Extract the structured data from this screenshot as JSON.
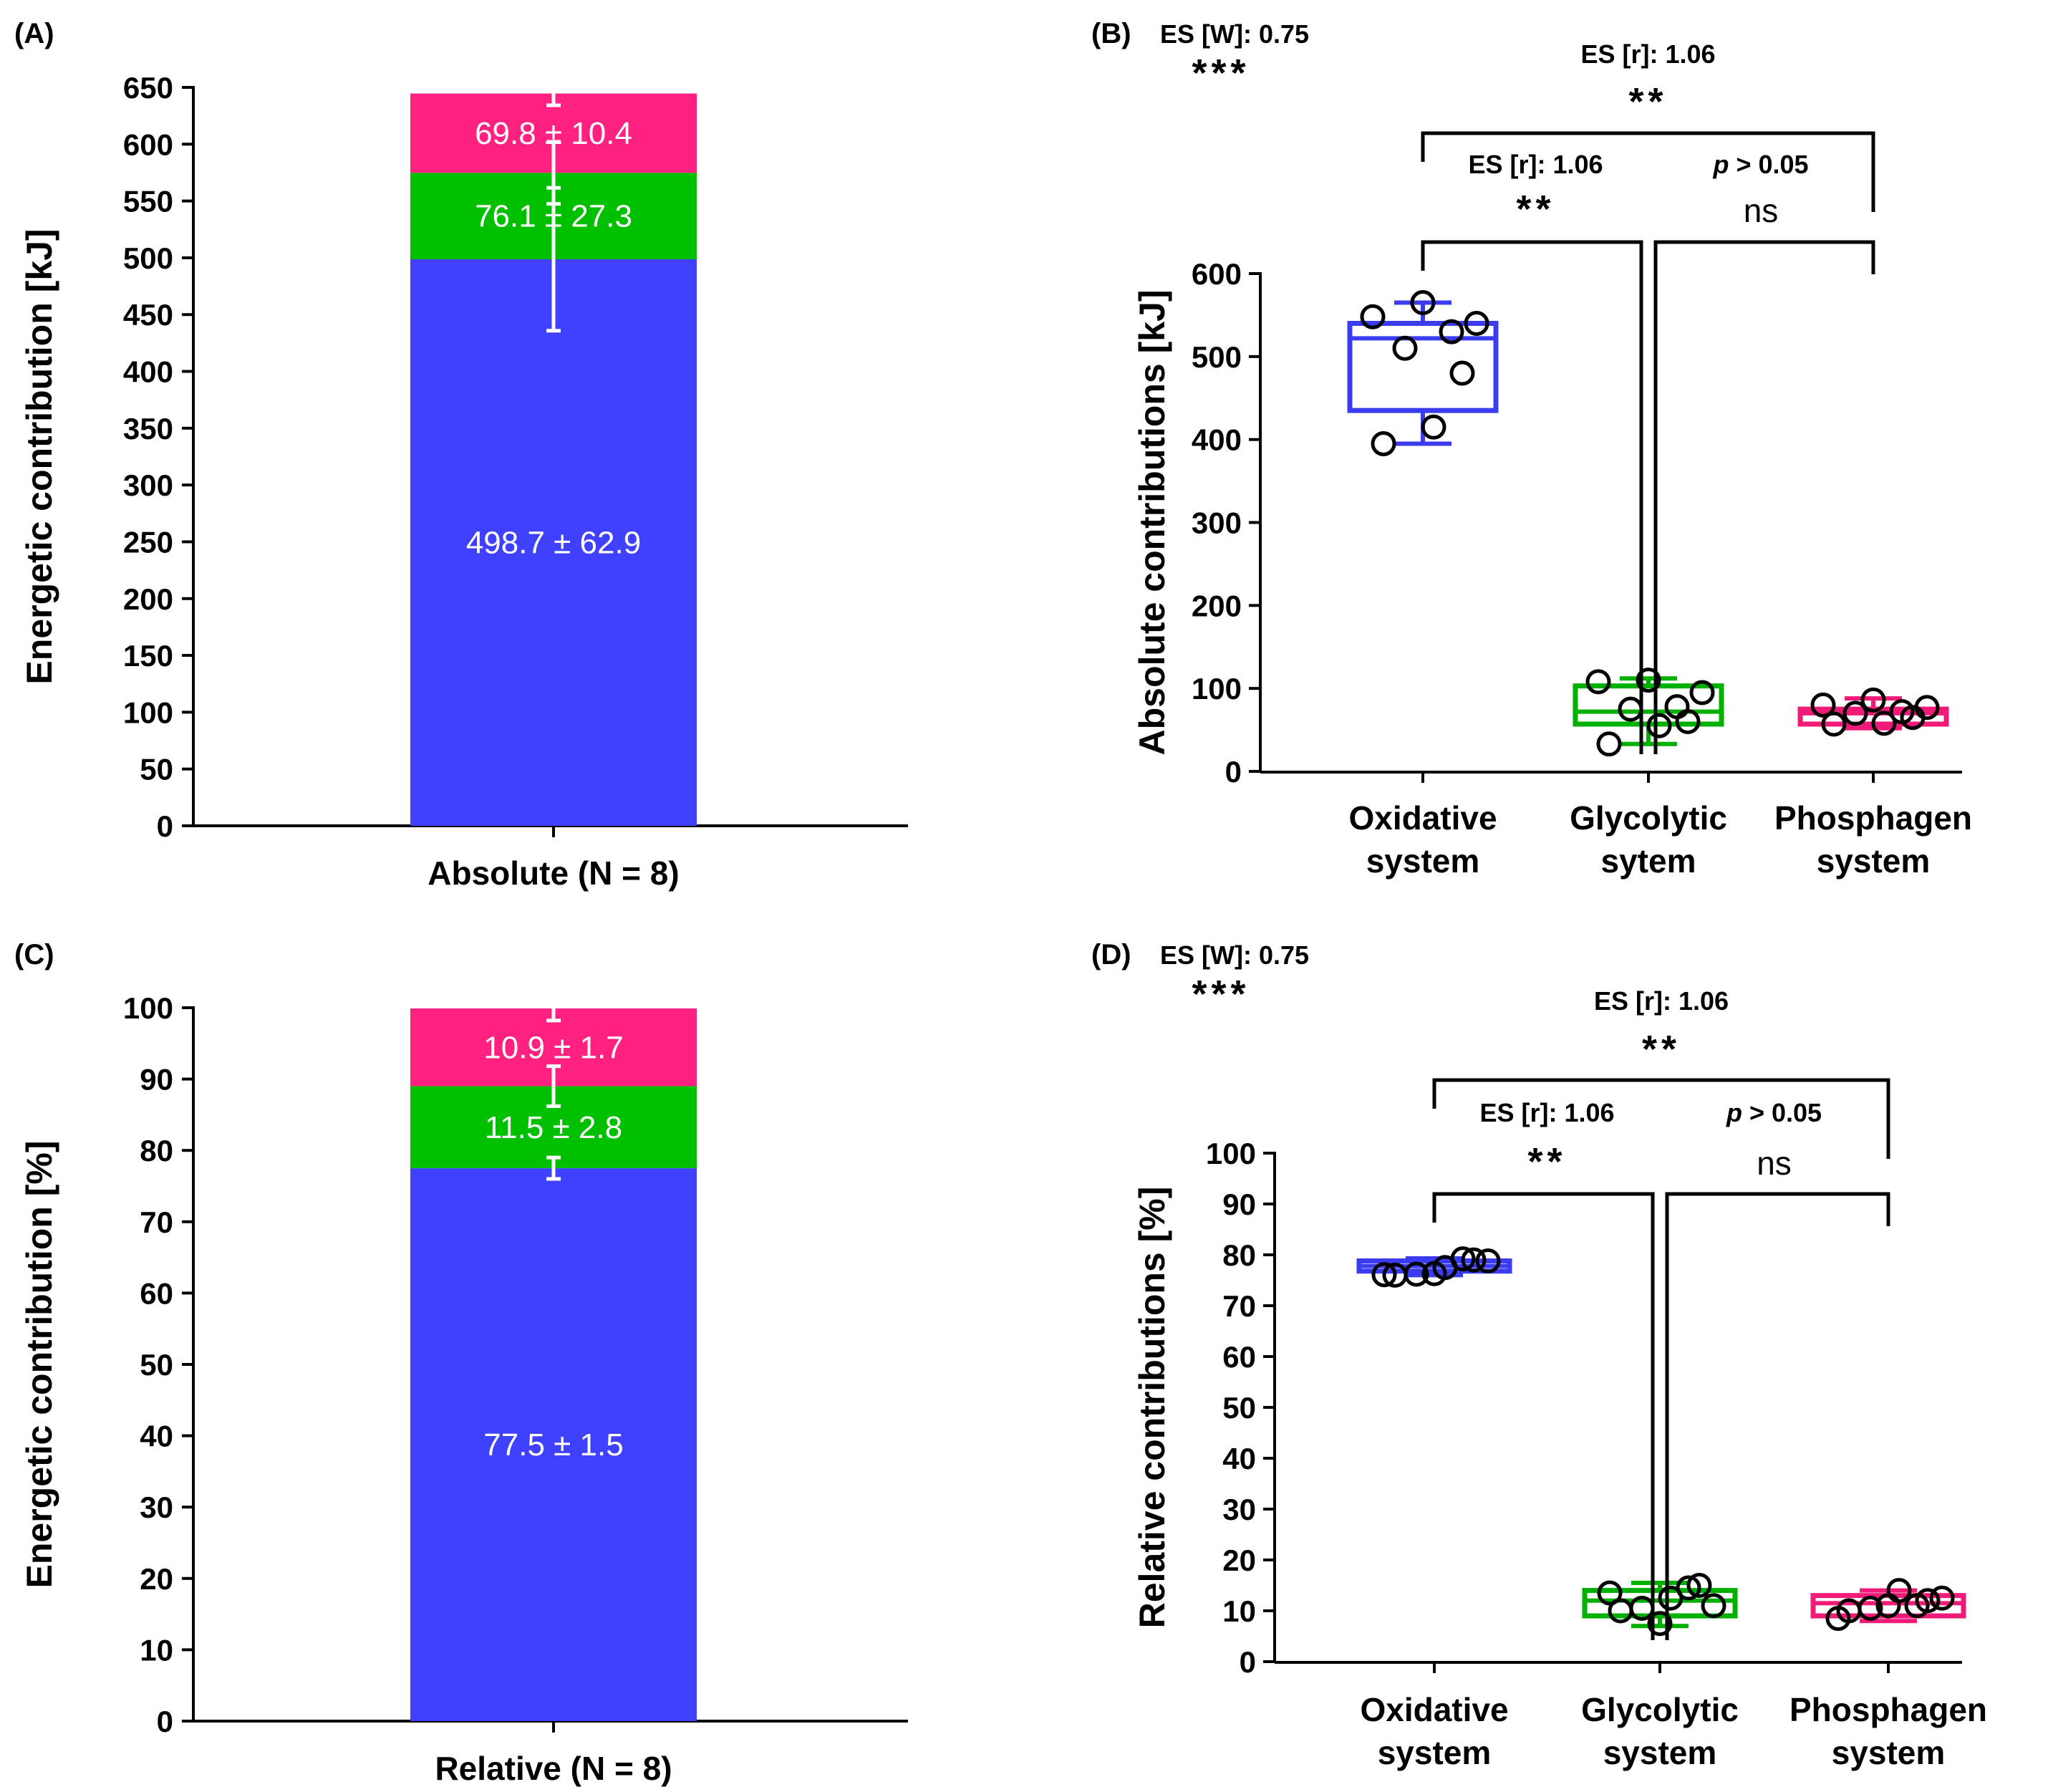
{
  "colors": {
    "oxidative": "#4040ff",
    "glycolytic": "#00c000",
    "phosphagen": "#ff2080",
    "oxidative_box": "#3b3bf0",
    "glycolytic_box": "#00b000",
    "phosphagen_box": "#f01a78",
    "axis": "#000000"
  },
  "chart_data": [
    {
      "panel": "(A)",
      "type": "bar",
      "stacked": true,
      "ylabel": "Energetic contribution [kJ]",
      "category": "Absolute (N = 8)",
      "ylim": [
        0,
        650
      ],
      "yticks": [
        0,
        50,
        100,
        150,
        200,
        250,
        300,
        350,
        400,
        450,
        500,
        550,
        600,
        650
      ],
      "segments": [
        {
          "name": "Oxidative",
          "value": 498.7,
          "sd": 62.9,
          "label": "498.7 ± 62.9",
          "color_key": "oxidative"
        },
        {
          "name": "Glycolytic",
          "value": 76.1,
          "sd": 27.3,
          "label": "76.1 ± 27.3",
          "color_key": "glycolytic"
        },
        {
          "name": "Phosphagen",
          "value": 69.8,
          "sd": 10.4,
          "label": "69.8 ± 10.4",
          "color_key": "phosphagen"
        }
      ]
    },
    {
      "panel": "(B)",
      "type": "box",
      "ylabel": "Absolute contributions [kJ]",
      "ylim": [
        0,
        600
      ],
      "yticks": [
        0,
        100,
        200,
        300,
        400,
        500,
        600
      ],
      "categories": [
        {
          "line1": "Oxidative",
          "line2": "system",
          "color_key": "oxidative_box",
          "min": 395,
          "q1": 435,
          "median": 522,
          "q3": 540,
          "max": 565,
          "points": [
            395,
            415,
            480,
            510,
            530,
            540,
            548,
            565
          ]
        },
        {
          "line1": "Glycolytic",
          "line2": "sytem",
          "color_key": "glycolytic_box",
          "min": 33,
          "q1": 57,
          "median": 72,
          "q3": 103,
          "max": 112,
          "points": [
            33,
            55,
            60,
            75,
            78,
            95,
            108,
            110
          ]
        },
        {
          "line1": "Phosphagen",
          "line2": "system",
          "color_key": "phosphagen_box",
          "min": 52,
          "q1": 57,
          "median": 70,
          "q3": 75,
          "max": 88,
          "points": [
            57,
            58,
            65,
            70,
            72,
            77,
            80,
            86
          ]
        }
      ],
      "friedman": {
        "es": "ES [W]: 0.75",
        "sig": "***"
      },
      "comparisons": [
        {
          "from": 0,
          "to": 2,
          "es": "ES [r]: 1.06",
          "sig": "**",
          "level": 0
        },
        {
          "from": 0,
          "to": 1,
          "es": "ES [r]: 1.06",
          "sig": "**",
          "level": 1
        },
        {
          "from": 1,
          "to": 2,
          "p_prefix": "p",
          "p_suffix": " > 0.05",
          "sig": "ns",
          "level": 1
        }
      ]
    },
    {
      "panel": "(C)",
      "type": "bar",
      "stacked": true,
      "ylabel": "Energetic contribution [%]",
      "category": "Relative (N = 8)",
      "ylim": [
        0,
        100
      ],
      "yticks": [
        0,
        10,
        20,
        30,
        40,
        50,
        60,
        70,
        80,
        90,
        100
      ],
      "segments": [
        {
          "name": "Oxidative",
          "value": 77.5,
          "sd": 1.5,
          "label": "77.5 ± 1.5",
          "color_key": "oxidative"
        },
        {
          "name": "Glycolytic",
          "value": 11.5,
          "sd": 2.8,
          "label": "11.5 ± 2.8",
          "color_key": "glycolytic"
        },
        {
          "name": "Phosphagen",
          "value": 10.9,
          "sd": 1.7,
          "label": "10.9 ± 1.7",
          "color_key": "phosphagen"
        }
      ]
    },
    {
      "panel": "(D)",
      "type": "box",
      "ylabel": "Relative contributions [%]",
      "ylim": [
        0,
        100
      ],
      "yticks": [
        0,
        10,
        20,
        30,
        40,
        50,
        60,
        70,
        80,
        90,
        100
      ],
      "categories": [
        {
          "line1": "Oxidative",
          "line2": "system",
          "color_key": "oxidative_box",
          "min": 76,
          "q1": 76.8,
          "median": 77.8,
          "q3": 78.8,
          "max": 79.3,
          "points": [
            76,
            77.5,
            79,
            76.2,
            79.2,
            78.8,
            76.1,
            76.3
          ]
        },
        {
          "line1": "Glycolytic",
          "line2": "system",
          "color_key": "glycolytic_box",
          "min": 7,
          "q1": 9,
          "median": 12,
          "q3": 14,
          "max": 15.5,
          "points": [
            10,
            12.5,
            15,
            10.5,
            14.5,
            11,
            13.5,
            7.5
          ]
        },
        {
          "line1": "Phosphagen",
          "line2": "system",
          "color_key": "phosphagen_box",
          "min": 8,
          "q1": 9,
          "median": 11.5,
          "q3": 13,
          "max": 14,
          "points": [
            10,
            14,
            12,
            10.5,
            11,
            12.5,
            8.5,
            11
          ]
        }
      ],
      "friedman": {
        "es": "ES [W]: 0.75",
        "sig": "***"
      },
      "comparisons": [
        {
          "from": 0,
          "to": 2,
          "es": "ES [r]: 1.06",
          "sig": "**",
          "level": 0
        },
        {
          "from": 0,
          "to": 1,
          "es": "ES [r]: 1.06",
          "sig": "**",
          "level": 1
        },
        {
          "from": 1,
          "to": 2,
          "p_prefix": "p",
          "p_suffix": " > 0.05",
          "sig": "ns",
          "level": 1
        }
      ]
    }
  ]
}
